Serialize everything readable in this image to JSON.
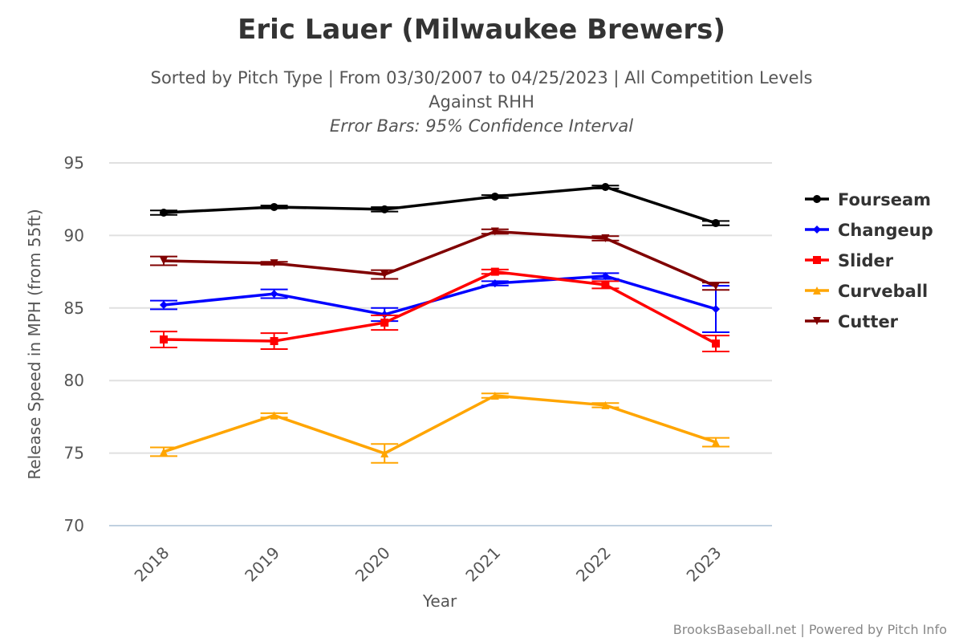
{
  "chart_data": {
    "type": "line",
    "title": "Eric Lauer (Milwaukee Brewers)",
    "subtitle_lines": [
      "Sorted by Pitch Type | From 03/30/2007 to 04/25/2023 | All Competition Levels",
      "Against RHH"
    ],
    "subtitle_note": "Error Bars: 95% Confidence Interval",
    "xlabel": "Year",
    "ylabel": "Release Speed in MPH (from 55ft)",
    "categories": [
      "2018",
      "2019",
      "2020",
      "2021",
      "2022",
      "2023"
    ],
    "ylim": [
      70,
      95
    ],
    "yticks": [
      70,
      75,
      80,
      85,
      90,
      95
    ],
    "grid": true,
    "legend_position": "right",
    "credits": "BrooksBaseball.net | Powered by Pitch Info",
    "series": [
      {
        "name": "Fourseam",
        "color": "#000000",
        "marker": "circle",
        "values": [
          91.57,
          91.96,
          91.8,
          92.68,
          93.34,
          90.85
        ],
        "ci": [
          0.15,
          0.1,
          0.15,
          0.1,
          0.1,
          0.15
        ]
      },
      {
        "name": "Changeup",
        "color": "#0000ff",
        "marker": "diamond",
        "values": [
          85.21,
          85.98,
          84.55,
          86.7,
          87.2,
          84.93
        ],
        "ci": [
          0.3,
          0.3,
          0.45,
          0.15,
          0.2,
          1.6
        ]
      },
      {
        "name": "Slider",
        "color": "#ff0000",
        "marker": "square",
        "values": [
          82.83,
          82.72,
          83.99,
          87.5,
          86.6,
          82.55
        ],
        "ci": [
          0.55,
          0.55,
          0.5,
          0.15,
          0.25,
          0.55
        ]
      },
      {
        "name": "Curveball",
        "color": "#ffa500",
        "marker": "triangle",
        "values": [
          75.09,
          77.6,
          74.98,
          78.96,
          78.3,
          75.75
        ],
        "ci": [
          0.3,
          0.15,
          0.65,
          0.15,
          0.15,
          0.3
        ]
      },
      {
        "name": "Cutter",
        "color": "#800000",
        "marker": "triangle-down",
        "values": [
          88.25,
          88.08,
          87.31,
          90.27,
          89.8,
          86.5
        ],
        "ci": [
          0.3,
          0.1,
          0.3,
          0.15,
          0.15,
          0.25
        ]
      }
    ]
  }
}
